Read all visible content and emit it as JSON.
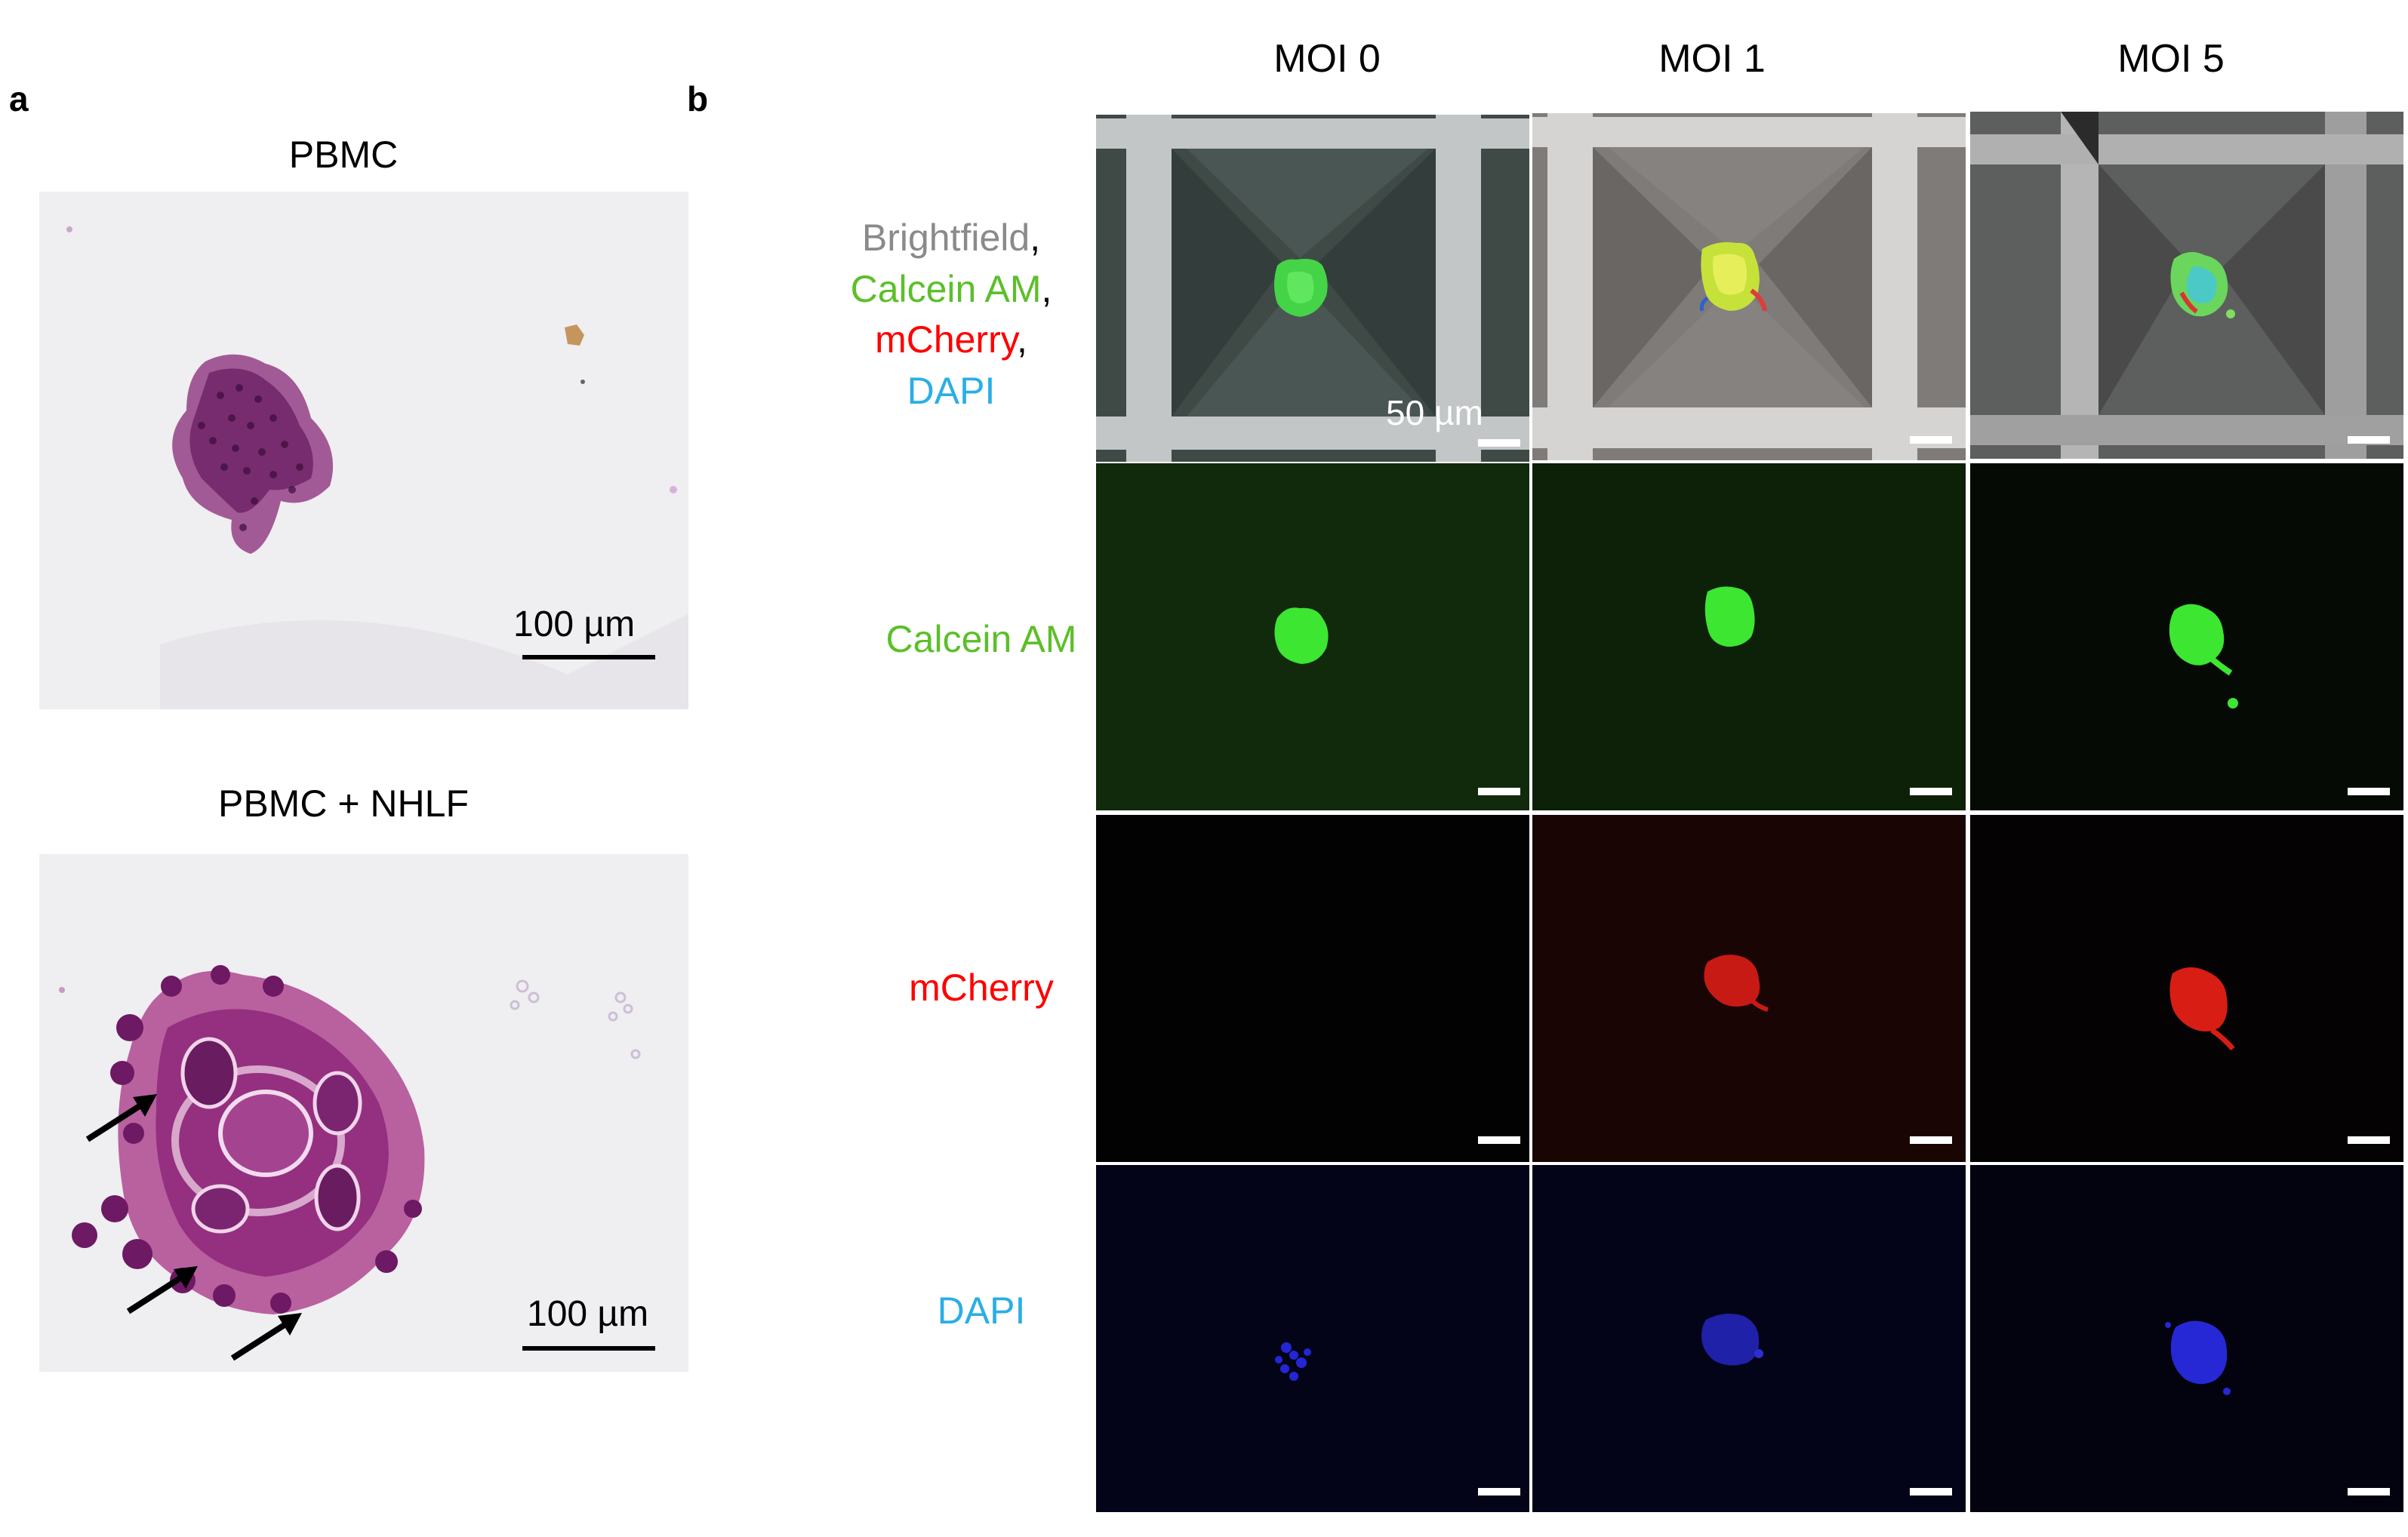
{
  "panel_a": {
    "label": "a",
    "top_title": "PBMC",
    "bottom_title": "PBMC + NHLF",
    "top_scale": "100 µm",
    "bottom_scale": "100 µm"
  },
  "panel_b": {
    "label": "b",
    "columns": [
      "MOI 0",
      "MOI 1",
      "MOI 5"
    ],
    "row1_labels": [
      {
        "text": "Brightfield",
        "color": "#8a8a8a"
      },
      {
        "text": "Calcein AM",
        "color": "#5cbf2a"
      },
      {
        "text": "mCherry",
        "color": "#ff0000"
      },
      {
        "text": "DAPI",
        "color": "#2aaee6"
      }
    ],
    "row1_punct": ",",
    "row2_label": "Calcein AM",
    "row3_label": "mCherry",
    "row4_label": "DAPI",
    "scale_label": "50 µm"
  },
  "colors": {
    "calcein": "#5cbf2a",
    "mcherry": "#ff0000",
    "dapi": "#2aaee6",
    "brightfield": "#8a8a8a",
    "he_stain": "#8b2a7a"
  }
}
